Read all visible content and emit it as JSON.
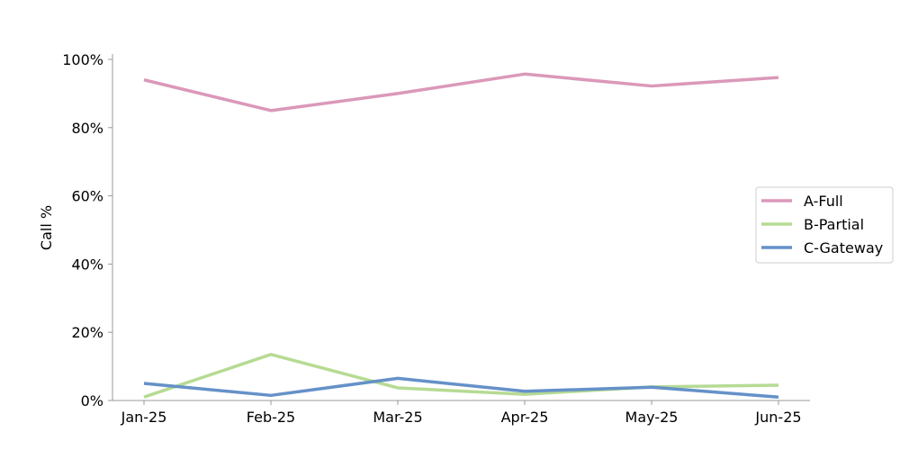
{
  "chart_data": {
    "type": "line",
    "title": "",
    "xlabel": "",
    "ylabel": "Call %",
    "categories": [
      "Jan-25",
      "Feb-25",
      "Mar-25",
      "Apr-25",
      "May-25",
      "Jun-25"
    ],
    "ylim": [
      0,
      100
    ],
    "yticks": [
      0,
      20,
      40,
      60,
      80,
      100
    ],
    "ytick_labels": [
      "0%",
      "20%",
      "40%",
      "60%",
      "80%",
      "100%"
    ],
    "grid": false,
    "legend_position": "right",
    "series": [
      {
        "name": "A-Full",
        "color": "#db98b9",
        "values": [
          94.0,
          85.0,
          90.0,
          95.7,
          92.2,
          94.7
        ]
      },
      {
        "name": "B-Partial",
        "color": "#b6db94",
        "values": [
          1.0,
          13.5,
          3.7,
          1.8,
          4.0,
          4.5
        ]
      },
      {
        "name": "C-Gateway",
        "color": "#6591c8",
        "values": [
          5.0,
          1.5,
          6.5,
          2.7,
          3.9,
          1.0
        ]
      }
    ]
  }
}
